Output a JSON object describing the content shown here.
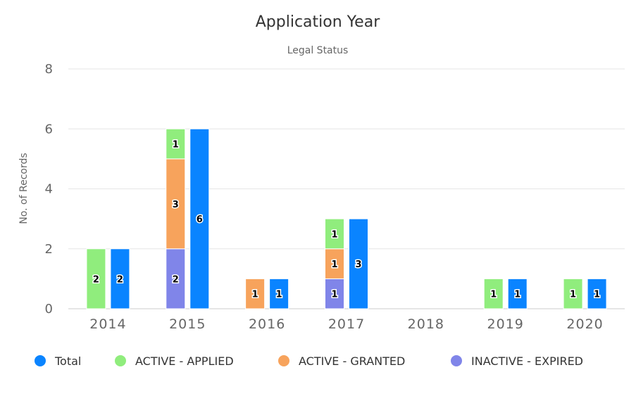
{
  "chart_data": {
    "type": "bar",
    "title": "Application Year",
    "subtitle": "Legal Status",
    "xlabel": "",
    "ylabel": "No. of Records",
    "ylim": [
      0,
      8
    ],
    "yticks": [
      0,
      2,
      4,
      6,
      8
    ],
    "grid": true,
    "legend_position": "bottom",
    "categories": [
      "2014",
      "2015",
      "2016",
      "2017",
      "2018",
      "2019",
      "2020"
    ],
    "stacked_series": [
      {
        "name": "INACTIVE - EXPIRED",
        "color": "#8085e9",
        "values": [
          0,
          2,
          0,
          1,
          0,
          0,
          0
        ]
      },
      {
        "name": "ACTIVE - GRANTED",
        "color": "#f7a35c",
        "values": [
          0,
          3,
          1,
          1,
          0,
          0,
          0
        ]
      },
      {
        "name": "ACTIVE - APPLIED",
        "color": "#90ed7d",
        "values": [
          2,
          1,
          0,
          1,
          0,
          1,
          1
        ]
      }
    ],
    "total_series": {
      "name": "Total",
      "color": "#0a84ff",
      "values": [
        2,
        6,
        1,
        3,
        0,
        1,
        1
      ]
    },
    "legend_order": [
      "Total",
      "ACTIVE - APPLIED",
      "ACTIVE - GRANTED",
      "INACTIVE - EXPIRED"
    ]
  }
}
